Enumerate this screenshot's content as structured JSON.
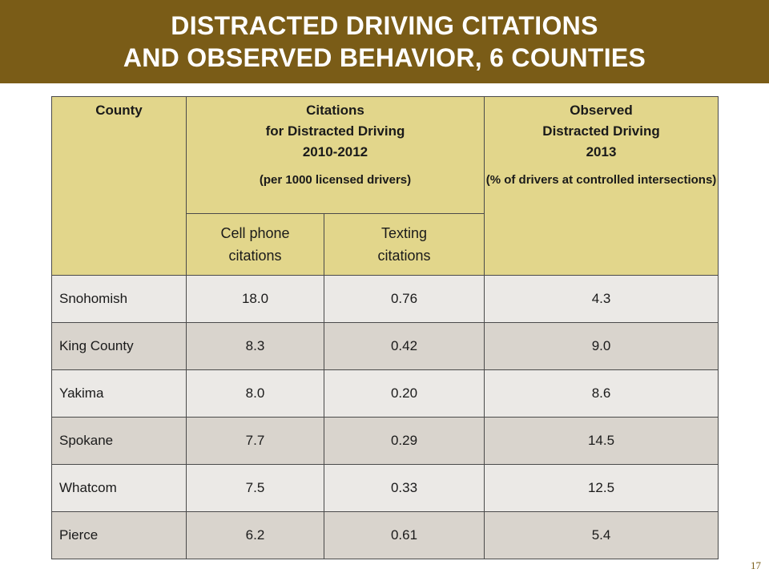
{
  "title": {
    "line1": "DISTRACTED DRIVING CITATIONS",
    "line2": "AND OBSERVED BEHAVIOR, 6 COUNTIES"
  },
  "colors": {
    "title_bar": "#7a5c17",
    "header_fill": "#e2d68b",
    "row_light": "#ebe9e6",
    "row_dark": "#d9d4cd"
  },
  "table": {
    "headers": {
      "county": "County",
      "citations_line1": "Citations",
      "citations_line2": "for Distracted Driving",
      "citations_line3": "2010-2012",
      "citations_note": "(per 1000 licensed drivers)",
      "observed_line1": "Observed",
      "observed_line2": "Distracted Driving",
      "observed_line3": "2013",
      "observed_note": "(% of drivers at controlled intersections)",
      "cell_phone_line1": "Cell phone",
      "cell_phone_line2": "citations",
      "texting_line1": "Texting",
      "texting_line2": "citations"
    },
    "rows": [
      {
        "county": "Snohomish",
        "cell_phone": "18.0",
        "texting": "0.76",
        "observed": "4.3"
      },
      {
        "county": "King County",
        "cell_phone": "8.3",
        "texting": "0.42",
        "observed": "9.0"
      },
      {
        "county": "Yakima",
        "cell_phone": "8.0",
        "texting": "0.20",
        "observed": "8.6"
      },
      {
        "county": "Spokane",
        "cell_phone": "7.7",
        "texting": "0.29",
        "observed": "14.5"
      },
      {
        "county": "Whatcom",
        "cell_phone": "7.5",
        "texting": "0.33",
        "observed": "12.5"
      },
      {
        "county": "Pierce",
        "cell_phone": "6.2",
        "texting": "0.61",
        "observed": "5.4"
      }
    ]
  },
  "slide_number": "17"
}
